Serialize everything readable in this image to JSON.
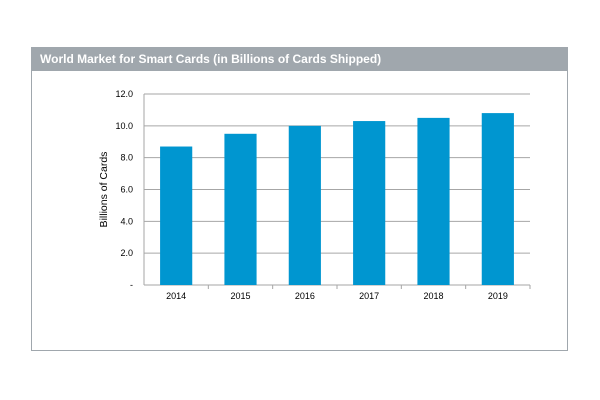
{
  "title": "World Market for  Smart Cards (in Billions  of Cards Shipped)",
  "colors": {
    "bar": "#0096d0",
    "title_bar": "#a0a7ad",
    "grid": "#a6a6a6"
  },
  "chart_data": {
    "type": "bar",
    "title": "World Market for  Smart Cards (in Billions  of Cards Shipped)",
    "xlabel": "",
    "ylabel": "Billions of Cards",
    "categories": [
      "2014",
      "2015",
      "2016",
      "2017",
      "2018",
      "2019"
    ],
    "values": [
      8.7,
      9.5,
      10.0,
      10.3,
      10.5,
      10.8
    ],
    "ylim": [
      0,
      12
    ],
    "yticks": [
      0,
      2,
      4,
      6,
      8,
      10,
      12
    ],
    "ytick_labels": [
      "-",
      "2.0",
      "4.0",
      "6.0",
      "8.0",
      "10.0",
      "12.0"
    ],
    "grid": true,
    "legend": "none"
  }
}
